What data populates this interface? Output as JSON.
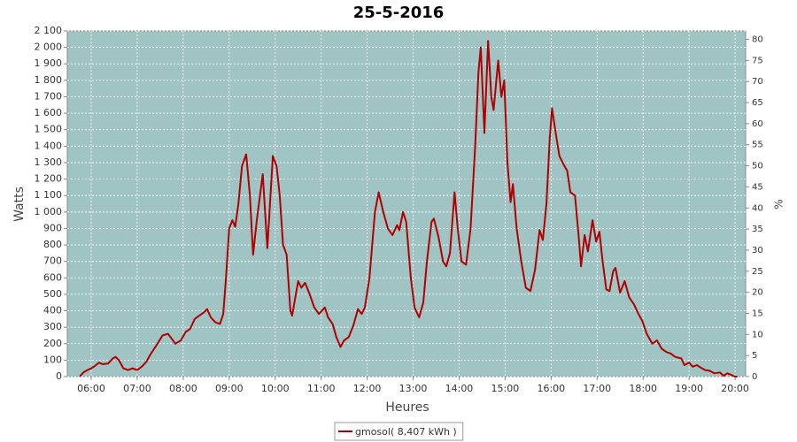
{
  "chart_data": {
    "type": "line",
    "title": "25-5-2016",
    "x_label": "Heures",
    "y_label": "Watts",
    "y2_label": "%",
    "grid": true,
    "legend": "bottom",
    "background": "#a0c4c4",
    "xlim": [
      5.48,
      20.23
    ],
    "xticks": [
      {
        "value": 6,
        "label": "06:00"
      },
      {
        "value": 7,
        "label": "07:00"
      },
      {
        "value": 8,
        "label": "08:00"
      },
      {
        "value": 9,
        "label": "09:00"
      },
      {
        "value": 10,
        "label": "10:00"
      },
      {
        "value": 11,
        "label": "11:00"
      },
      {
        "value": 12,
        "label": "12:00"
      },
      {
        "value": 13,
        "label": "13:00"
      },
      {
        "value": 14,
        "label": "14:00"
      },
      {
        "value": 15,
        "label": "15:00"
      },
      {
        "value": 16,
        "label": "16:00"
      },
      {
        "value": 17,
        "label": "17:00"
      },
      {
        "value": 18,
        "label": "18:00"
      },
      {
        "value": 19,
        "label": "19:00"
      },
      {
        "value": 20,
        "label": "20:00"
      }
    ],
    "ylim": [
      0,
      2100
    ],
    "yticks": [
      0,
      100,
      200,
      300,
      400,
      500,
      600,
      700,
      800,
      900,
      {
        "value": 1000,
        "label": "1 000"
      },
      {
        "value": 1100,
        "label": "1 100"
      },
      {
        "value": 1200,
        "label": "1 200"
      },
      {
        "value": 1300,
        "label": "1 300"
      },
      {
        "value": 1400,
        "label": "1 400"
      },
      {
        "value": 1500,
        "label": "1 500"
      },
      {
        "value": 1600,
        "label": "1 600"
      },
      {
        "value": 1700,
        "label": "1 700"
      },
      {
        "value": 1800,
        "label": "1 800"
      },
      {
        "value": 1900,
        "label": "1 900"
      },
      {
        "value": 2000,
        "label": "2 000"
      },
      {
        "value": 2100,
        "label": "2 100"
      }
    ],
    "y2lim": [
      0,
      82
    ],
    "y2ticks": [
      0,
      5,
      10,
      15,
      20,
      25,
      30,
      35,
      40,
      45,
      50,
      55,
      60,
      65,
      70,
      75,
      80
    ],
    "x": [
      5.75,
      5.83,
      5.92,
      6.0,
      6.08,
      6.17,
      6.25,
      6.37,
      6.47,
      6.53,
      6.6,
      6.7,
      6.8,
      6.9,
      7.0,
      7.1,
      7.2,
      7.3,
      7.42,
      7.55,
      7.67,
      7.75,
      7.83,
      7.95,
      8.05,
      8.15,
      8.25,
      8.35,
      8.45,
      8.52,
      8.6,
      8.7,
      8.8,
      8.87,
      8.93,
      9.0,
      9.07,
      9.13,
      9.2,
      9.28,
      9.37,
      9.45,
      9.52,
      9.6,
      9.73,
      9.83,
      9.95,
      10.03,
      10.1,
      10.17,
      10.25,
      10.33,
      10.37,
      10.5,
      10.57,
      10.65,
      10.75,
      10.85,
      10.95,
      11.08,
      11.15,
      11.25,
      11.33,
      11.42,
      11.5,
      11.6,
      11.7,
      11.8,
      11.88,
      11.95,
      12.05,
      12.17,
      12.25,
      12.35,
      12.45,
      12.55,
      12.65,
      12.7,
      12.78,
      12.85,
      12.95,
      13.03,
      13.13,
      13.22,
      13.3,
      13.4,
      13.45,
      13.55,
      13.65,
      13.72,
      13.8,
      13.9,
      13.97,
      14.05,
      14.15,
      14.25,
      14.35,
      14.42,
      14.47,
      14.55,
      14.63,
      14.7,
      14.75,
      14.85,
      14.92,
      14.98,
      15.05,
      15.12,
      15.17,
      15.25,
      15.35,
      15.45,
      15.55,
      15.65,
      15.75,
      15.82,
      15.9,
      15.97,
      16.02,
      16.1,
      16.18,
      16.27,
      16.35,
      16.42,
      16.52,
      16.6,
      16.65,
      16.73,
      16.8,
      16.9,
      16.98,
      17.05,
      17.12,
      17.2,
      17.27,
      17.35,
      17.4,
      17.5,
      17.6,
      17.7,
      17.8,
      17.9,
      17.98,
      18.08,
      18.2,
      18.3,
      18.4,
      18.5,
      18.6,
      18.7,
      18.83,
      18.9,
      19.0,
      19.08,
      19.17,
      19.25,
      19.35,
      19.45,
      19.55,
      19.67,
      19.75,
      19.83,
      19.92,
      20.0,
      20.05
    ],
    "series": [
      {
        "name": "gmosol( 8,407 kWh )",
        "color": "#b00000",
        "values": [
          0,
          25,
          40,
          50,
          65,
          85,
          75,
          80,
          110,
          120,
          100,
          50,
          40,
          50,
          40,
          60,
          90,
          140,
          190,
          250,
          260,
          230,
          200,
          220,
          270,
          290,
          350,
          370,
          390,
          410,
          360,
          330,
          320,
          380,
          600,
          900,
          950,
          910,
          1050,
          1280,
          1350,
          1100,
          740,
          950,
          1230,
          780,
          1340,
          1280,
          1100,
          800,
          740,
          400,
          370,
          580,
          540,
          570,
          500,
          420,
          380,
          420,
          360,
          320,
          240,
          180,
          220,
          240,
          310,
          410,
          380,
          420,
          600,
          1000,
          1120,
          1000,
          900,
          860,
          920,
          890,
          1000,
          940,
          600,
          420,
          360,
          450,
          700,
          940,
          960,
          850,
          700,
          670,
          750,
          1120,
          900,
          700,
          680,
          900,
          1400,
          1850,
          2000,
          1480,
          2040,
          1700,
          1620,
          1920,
          1700,
          1800,
          1300,
          1060,
          1170,
          900,
          700,
          540,
          520,
          650,
          890,
          830,
          1050,
          1450,
          1630,
          1480,
          1340,
          1290,
          1250,
          1120,
          1100,
          850,
          670,
          860,
          760,
          950,
          820,
          880,
          700,
          530,
          520,
          640,
          660,
          510,
          580,
          480,
          440,
          380,
          340,
          260,
          200,
          220,
          170,
          150,
          140,
          120,
          110,
          70,
          85,
          60,
          70,
          55,
          40,
          35,
          20,
          25,
          5,
          20,
          10,
          0,
          0
        ]
      }
    ]
  }
}
